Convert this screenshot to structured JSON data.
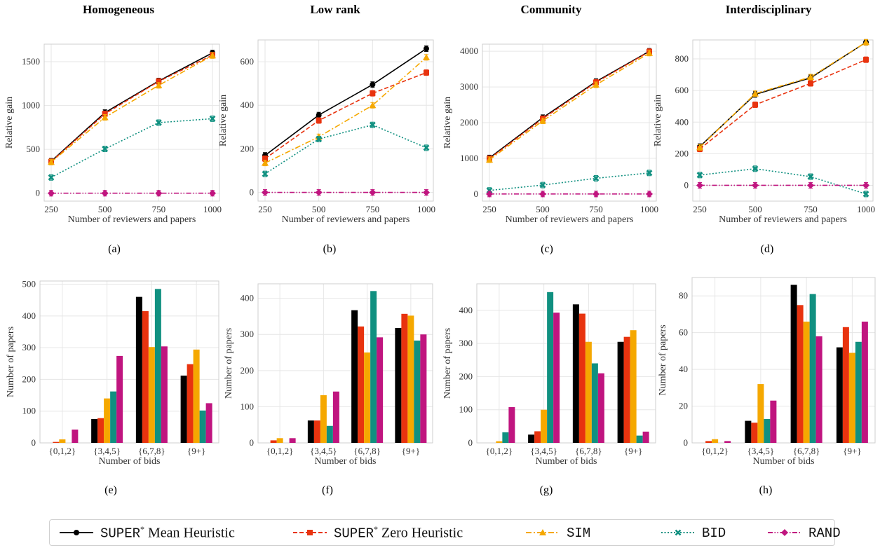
{
  "column_titles": [
    "Homogeneous",
    "Low rank",
    "Community",
    "Interdisciplinary"
  ],
  "panel_labels": [
    "(a)",
    "(b)",
    "(c)",
    "(d)",
    "(e)",
    "(f)",
    "(g)",
    "(h)"
  ],
  "colors": {
    "super_mean": "#000000",
    "super_zero": "#e8330f",
    "sim": "#f5a800",
    "bid": "#109080",
    "rand": "#c0157f"
  },
  "legend": [
    {
      "key": "super_mean",
      "mono": "SUPER",
      "sup": "*",
      "rest": " Mean Heuristic",
      "marker": "circle",
      "dash": "solid"
    },
    {
      "key": "super_zero",
      "mono": "SUPER",
      "sup": "*",
      "rest": " Zero Heuristic",
      "marker": "square",
      "dash": "dashed"
    },
    {
      "key": "sim",
      "mono": "SIM",
      "sup": "",
      "rest": "",
      "marker": "triangle",
      "dash": "dashdot"
    },
    {
      "key": "bid",
      "mono": "BID",
      "sup": "",
      "rest": "",
      "marker": "x",
      "dash": "dotted"
    },
    {
      "key": "rand",
      "mono": "RAND",
      "sup": "",
      "rest": "",
      "marker": "diamond",
      "dash": "dashdotdot"
    }
  ],
  "chart_data": [
    {
      "type": "line",
      "panel": "(a)",
      "x": [
        250,
        500,
        750,
        1000
      ],
      "xticks": [
        "250",
        "500",
        "750",
        "1000"
      ],
      "xlabel": "Number of reviewers and papers",
      "ylabel": "Relative gain",
      "ylim": [
        -90,
        1700
      ],
      "yticks": [
        0,
        500,
        1000,
        1500
      ],
      "series": [
        {
          "key": "super_mean",
          "values": [
            365,
            920,
            1280,
            1600
          ]
        },
        {
          "key": "super_zero",
          "values": [
            360,
            905,
            1275,
            1575
          ]
        },
        {
          "key": "sim",
          "values": [
            355,
            865,
            1230,
            1570
          ]
        },
        {
          "key": "bid",
          "values": [
            180,
            505,
            805,
            850
          ]
        },
        {
          "key": "rand",
          "values": [
            0,
            0,
            0,
            0
          ]
        }
      ]
    },
    {
      "type": "line",
      "panel": "(b)",
      "x": [
        250,
        500,
        750,
        1000
      ],
      "xticks": [
        "250",
        "500",
        "750",
        "1000"
      ],
      "xlabel": "Number of reviewers and papers",
      "ylabel": "Relative gain",
      "ylim": [
        -40,
        700
      ],
      "yticks": [
        0,
        200,
        400,
        600
      ],
      "series": [
        {
          "key": "super_mean",
          "values": [
            170,
            355,
            495,
            660
          ]
        },
        {
          "key": "super_zero",
          "values": [
            155,
            330,
            455,
            550
          ]
        },
        {
          "key": "sim",
          "values": [
            135,
            255,
            400,
            620
          ]
        },
        {
          "key": "bid",
          "values": [
            85,
            245,
            310,
            205
          ]
        },
        {
          "key": "rand",
          "values": [
            0,
            0,
            0,
            0
          ]
        }
      ]
    },
    {
      "type": "line",
      "panel": "(c)",
      "x": [
        250,
        500,
        750,
        1000
      ],
      "xticks": [
        "250",
        "500",
        "750",
        "1000"
      ],
      "xlabel": "Number of reviewers and papers",
      "ylabel": "Relative gain",
      "ylim": [
        -200,
        4200
      ],
      "yticks": [
        0,
        1000,
        2000,
        3000,
        4000
      ],
      "series": [
        {
          "key": "super_mean",
          "values": [
            1010,
            2140,
            3150,
            4000
          ]
        },
        {
          "key": "super_zero",
          "values": [
            990,
            2110,
            3130,
            3990
          ]
        },
        {
          "key": "sim",
          "values": [
            960,
            2050,
            3060,
            3950
          ]
        },
        {
          "key": "bid",
          "values": [
            100,
            250,
            440,
            590
          ]
        },
        {
          "key": "rand",
          "values": [
            0,
            0,
            0,
            0
          ]
        }
      ]
    },
    {
      "type": "line",
      "panel": "(d)",
      "x": [
        250,
        500,
        750,
        1000
      ],
      "xticks": [
        "250",
        "500",
        "750",
        "1000"
      ],
      "xlabel": "Number of reviewers and papers",
      "ylabel": "Relative gain",
      "ylim": [
        -100,
        920
      ],
      "yticks": [
        0,
        200,
        400,
        600,
        800
      ],
      "series": [
        {
          "key": "super_mean",
          "values": [
            245,
            575,
            680,
            905
          ]
        },
        {
          "key": "super_zero",
          "values": [
            230,
            510,
            645,
            795
          ]
        },
        {
          "key": "sim",
          "values": [
            240,
            580,
            685,
            905
          ]
        },
        {
          "key": "bid",
          "values": [
            65,
            105,
            55,
            -55
          ]
        },
        {
          "key": "rand",
          "values": [
            0,
            0,
            0,
            0
          ]
        }
      ]
    },
    {
      "type": "bar",
      "panel": "(e)",
      "categories": [
        "{0,1,2}",
        "{3,4,5}",
        "{6,7,8}",
        "{9+}"
      ],
      "xlabel": "Number of bids",
      "ylabel": "Number of papers",
      "ylim": [
        0,
        510
      ],
      "yticks": [
        0,
        100,
        200,
        300,
        400,
        500
      ],
      "series": [
        {
          "key": "super_mean",
          "values": [
            0,
            75,
            460,
            212
          ]
        },
        {
          "key": "super_zero",
          "values": [
            3,
            78,
            415,
            248
          ]
        },
        {
          "key": "sim",
          "values": [
            11,
            140,
            302,
            294
          ]
        },
        {
          "key": "bid",
          "values": [
            0,
            162,
            485,
            102
          ]
        },
        {
          "key": "rand",
          "values": [
            42,
            274,
            304,
            125
          ]
        }
      ]
    },
    {
      "type": "bar",
      "panel": "(f)",
      "categories": [
        "{0,1,2}",
        "{3,4,5}",
        "{6,7,8}",
        "{9+}"
      ],
      "xlabel": "Number of bids",
      "ylabel": "Number of papers",
      "ylim": [
        0,
        440
      ],
      "yticks": [
        0,
        100,
        200,
        300,
        400
      ],
      "series": [
        {
          "key": "super_mean",
          "values": [
            0,
            62,
            367,
            318
          ]
        },
        {
          "key": "super_zero",
          "values": [
            7,
            62,
            322,
            357
          ]
        },
        {
          "key": "sim",
          "values": [
            13,
            132,
            250,
            352
          ]
        },
        {
          "key": "bid",
          "values": [
            0,
            47,
            420,
            283
          ]
        },
        {
          "key": "rand",
          "values": [
            13,
            142,
            292,
            300
          ]
        }
      ]
    },
    {
      "type": "bar",
      "panel": "(g)",
      "categories": [
        "{0,1,2}",
        "{3,4,5}",
        "{6,7,8}",
        "{9+}"
      ],
      "xlabel": "Number of bids",
      "ylabel": "Number of papers",
      "ylim": [
        0,
        480
      ],
      "yticks": [
        0,
        100,
        200,
        300,
        400
      ],
      "series": [
        {
          "key": "super_mean",
          "values": [
            0,
            25,
            418,
            305
          ]
        },
        {
          "key": "super_zero",
          "values": [
            0,
            35,
            390,
            320
          ]
        },
        {
          "key": "sim",
          "values": [
            5,
            100,
            305,
            340
          ]
        },
        {
          "key": "bid",
          "values": [
            32,
            455,
            240,
            22
          ]
        },
        {
          "key": "rand",
          "values": [
            108,
            393,
            210,
            34
          ]
        }
      ]
    },
    {
      "type": "bar",
      "panel": "(h)",
      "categories": [
        "{0,1,2}",
        "{3,4,5}",
        "{6,7,8}",
        "{9+}"
      ],
      "xlabel": "Number of bids",
      "ylabel": "Number of papers",
      "ylim": [
        0,
        90
      ],
      "yticks": [
        0,
        20,
        40,
        60,
        80
      ],
      "series": [
        {
          "key": "super_mean",
          "values": [
            0,
            12,
            86,
            52
          ]
        },
        {
          "key": "super_zero",
          "values": [
            1,
            11,
            75,
            63
          ]
        },
        {
          "key": "sim",
          "values": [
            2,
            32,
            66,
            49
          ]
        },
        {
          "key": "bid",
          "values": [
            0,
            13,
            81,
            55
          ]
        },
        {
          "key": "rand",
          "values": [
            1,
            23,
            58,
            66
          ]
        }
      ]
    }
  ]
}
